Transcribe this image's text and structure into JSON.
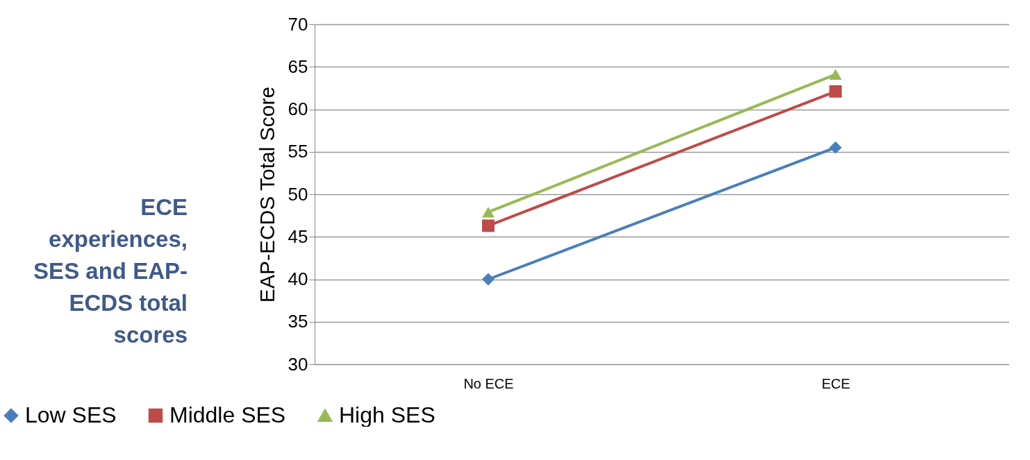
{
  "chart_data": {
    "type": "line",
    "title": "ECE experiences, SES and EAP-ECDS total scores",
    "ylabel": "EAP-ECDS Total Score",
    "categories": [
      "No ECE",
      "ECE"
    ],
    "series": [
      {
        "name": "Low SES",
        "color": "#4a7ebb",
        "marker": "diamond",
        "values": [
          40,
          55.5
        ]
      },
      {
        "name": "Middle SES",
        "color": "#be4b48",
        "marker": "square",
        "values": [
          46.3,
          62.1
        ]
      },
      {
        "name": "High SES",
        "color": "#98b954",
        "marker": "triangle",
        "values": [
          47.9,
          64.1
        ]
      }
    ],
    "ylim": [
      30,
      70
    ],
    "yticks": [
      30,
      35,
      40,
      45,
      50,
      55,
      60,
      65,
      70
    ],
    "grid": "y",
    "legend": "bottom",
    "line_style": "solid"
  }
}
